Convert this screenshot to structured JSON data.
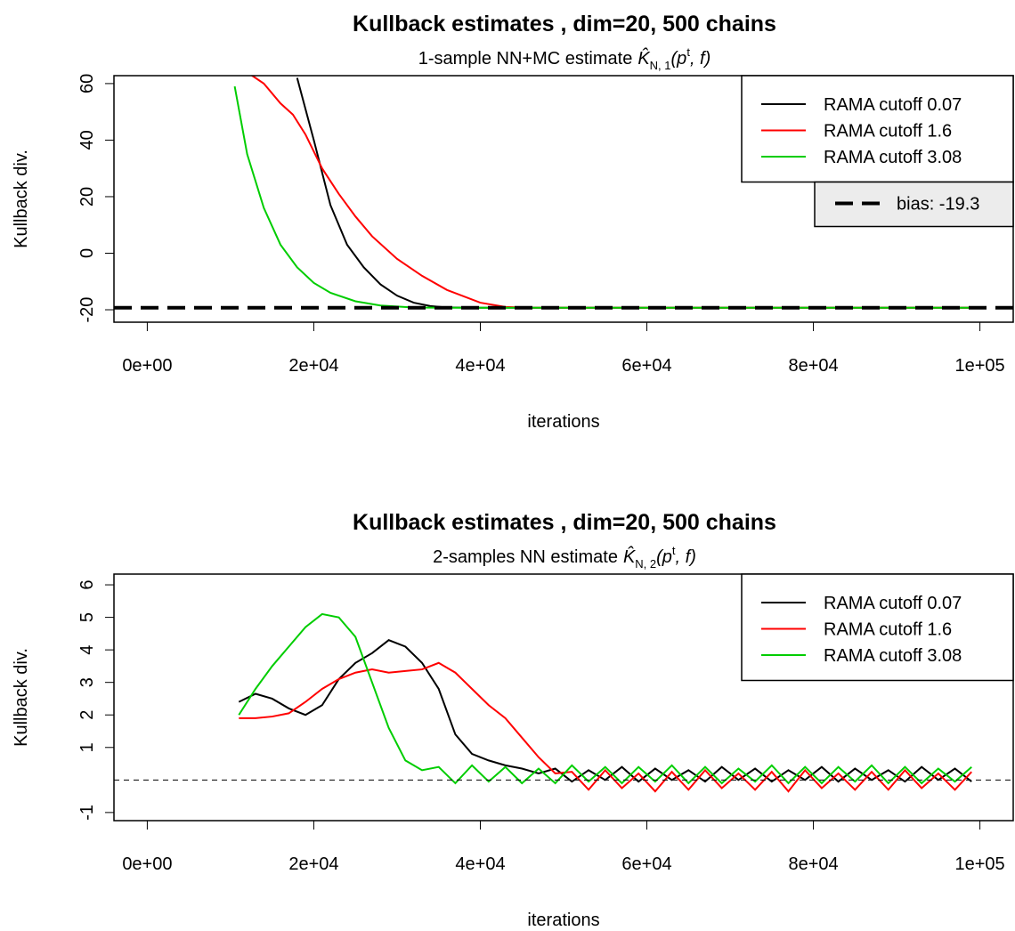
{
  "chart_data": [
    {
      "type": "line",
      "title": "Kullback estimates , dim=20, 500 chains",
      "subtitle": [
        "1-sample NN+MC estimate",
        "K̂",
        "N, 1",
        "(p",
        "t",
        ", f)"
      ],
      "xlabel": "iterations",
      "ylabel": "Kullback div.",
      "xlim": [
        -4000,
        104000
      ],
      "ylim": [
        -24.4,
        62.8
      ],
      "xticks": [
        {
          "value": 0,
          "label": "0e+00"
        },
        {
          "value": 20000,
          "label": "2e+04"
        },
        {
          "value": 40000,
          "label": "4e+04"
        },
        {
          "value": 60000,
          "label": "6e+04"
        },
        {
          "value": 80000,
          "label": "8e+04"
        },
        {
          "value": 100000,
          "label": "1e+05"
        }
      ],
      "yticks": [
        -20,
        0,
        20,
        40,
        60
      ],
      "legend": "topright",
      "hline": {
        "value": -19.3,
        "label": "bias: -19.3",
        "lwd": 4
      },
      "series": [
        {
          "name": "RAMA cutoff 0.07",
          "color": "#000000",
          "x": [
            18000,
            20000,
            22000,
            24000,
            26000,
            28000,
            30000,
            32000,
            34000,
            36000,
            40000,
            60000,
            100000
          ],
          "values": [
            62,
            40,
            17,
            3,
            -5,
            -11,
            -15,
            -17.5,
            -18.7,
            -19.2,
            -19.3,
            -19.3,
            -19.3
          ]
        },
        {
          "name": "RAMA cutoff 1.6",
          "color": "#ff0000",
          "x": [
            12500,
            14000,
            16000,
            17500,
            19000,
            21000,
            23000,
            25000,
            27000,
            30000,
            33000,
            36000,
            40000,
            43000,
            46000,
            60000,
            100000
          ],
          "values": [
            63,
            60,
            53,
            49,
            42,
            30,
            21,
            13,
            6,
            -2,
            -8,
            -13,
            -17.5,
            -19,
            -19.3,
            -19.3,
            -19.3
          ]
        },
        {
          "name": "RAMA cutoff 3.08",
          "color": "#00cd00",
          "x": [
            10500,
            12000,
            14000,
            16000,
            18000,
            20000,
            22000,
            25000,
            28000,
            32000,
            36000,
            60000,
            100000
          ],
          "values": [
            59,
            35,
            16,
            3,
            -5,
            -10.5,
            -14,
            -17,
            -18.5,
            -19.2,
            -19.3,
            -19.3,
            -19.3
          ]
        }
      ]
    },
    {
      "type": "line",
      "title": "Kullback estimates , dim=20, 500 chains",
      "subtitle": [
        "2-samples NN estimate",
        "K̂",
        "N, 2",
        "(p",
        "t",
        ", f)"
      ],
      "xlabel": "iterations",
      "ylabel": "Kullback div.",
      "xlim": [
        -4000,
        104000
      ],
      "ylim": [
        -1.25,
        6.33
      ],
      "xticks": [
        {
          "value": 0,
          "label": "0e+00"
        },
        {
          "value": 20000,
          "label": "2e+04"
        },
        {
          "value": 40000,
          "label": "4e+04"
        },
        {
          "value": 60000,
          "label": "6e+04"
        },
        {
          "value": 80000,
          "label": "8e+04"
        },
        {
          "value": 100000,
          "label": "1e+05"
        }
      ],
      "yticks": [
        -1,
        1,
        2,
        3,
        4,
        5,
        6
      ],
      "legend": "topright",
      "hline": {
        "value": 0,
        "lwd": 1
      },
      "x": [
        11000,
        13000,
        15000,
        17000,
        19000,
        21000,
        23000,
        25000,
        27000,
        29000,
        31000,
        33000,
        35000,
        37000,
        39000,
        41000,
        43000,
        45000,
        47000,
        49000,
        51000,
        53000,
        55000,
        57000,
        59000,
        61000,
        63000,
        65000,
        67000,
        69000,
        71000,
        73000,
        75000,
        77000,
        79000,
        81000,
        83000,
        85000,
        87000,
        89000,
        91000,
        93000,
        95000,
        97000,
        99000
      ],
      "series": [
        {
          "name": "RAMA cutoff 0.07",
          "color": "#000000",
          "values": [
            2.4,
            2.65,
            2.5,
            2.2,
            2.0,
            2.3,
            3.1,
            3.6,
            3.9,
            4.3,
            4.1,
            3.6,
            2.8,
            1.4,
            0.8,
            0.6,
            0.45,
            0.35,
            0.2,
            0.35,
            -0.05,
            0.3,
            0.0,
            0.4,
            -0.05,
            0.35,
            0.0,
            0.3,
            -0.05,
            0.4,
            0.0,
            0.35,
            -0.05,
            0.3,
            0.0,
            0.4,
            -0.05,
            0.35,
            0.0,
            0.3,
            -0.05,
            0.4,
            0.0,
            0.35,
            -0.05
          ]
        },
        {
          "name": "RAMA cutoff 1.6",
          "color": "#ff0000",
          "values": [
            1.9,
            1.9,
            1.95,
            2.05,
            2.4,
            2.8,
            3.1,
            3.3,
            3.4,
            3.3,
            3.35,
            3.4,
            3.6,
            3.3,
            2.8,
            2.3,
            1.9,
            1.3,
            0.7,
            0.2,
            0.25,
            -0.3,
            0.3,
            -0.25,
            0.2,
            -0.35,
            0.25,
            -0.3,
            0.3,
            -0.25,
            0.2,
            -0.3,
            0.25,
            -0.35,
            0.3,
            -0.25,
            0.2,
            -0.3,
            0.25,
            -0.3,
            0.3,
            -0.25,
            0.2,
            -0.3,
            0.25
          ]
        },
        {
          "name": "RAMA cutoff 3.08",
          "color": "#00cd00",
          "values": [
            2.0,
            2.8,
            3.5,
            4.1,
            4.7,
            5.1,
            5.0,
            4.4,
            3.0,
            1.6,
            0.6,
            0.3,
            0.4,
            -0.1,
            0.45,
            -0.05,
            0.4,
            -0.1,
            0.35,
            -0.1,
            0.45,
            -0.05,
            0.4,
            -0.1,
            0.4,
            -0.05,
            0.45,
            -0.1,
            0.4,
            -0.1,
            0.35,
            -0.05,
            0.45,
            -0.1,
            0.4,
            -0.1,
            0.4,
            -0.05,
            0.45,
            -0.1,
            0.4,
            -0.1,
            0.35,
            -0.05,
            0.4
          ]
        }
      ]
    }
  ]
}
